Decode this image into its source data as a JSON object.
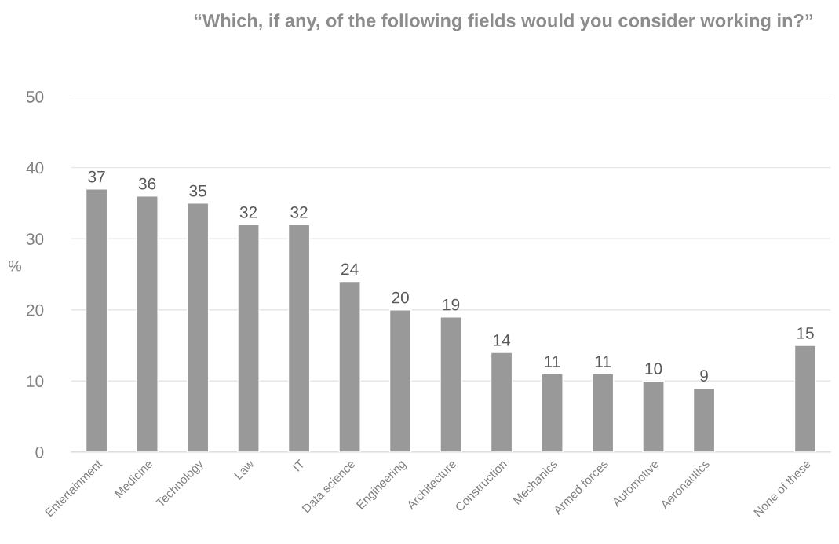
{
  "chart_data": {
    "type": "bar",
    "title": "“Which, if any, of the following fields would you consider working in?”",
    "ylabel": "%",
    "categories": [
      "Entertainment",
      "Medicine",
      "Technology",
      "Law",
      "IT",
      "Data science",
      "Engineering",
      "Architecture",
      "Construction",
      "Mechanics",
      "Armed forces",
      "Automotive",
      "Aeronautics",
      null,
      "None of these"
    ],
    "values": [
      37,
      36,
      35,
      32,
      32,
      24,
      20,
      19,
      14,
      11,
      11,
      10,
      9,
      null,
      15
    ],
    "color": "#999999",
    "ylim": [
      0,
      50
    ],
    "yticks": [
      0,
      10,
      20,
      30,
      40,
      50
    ],
    "grid": "y",
    "data_labels": true,
    "legend": false
  }
}
